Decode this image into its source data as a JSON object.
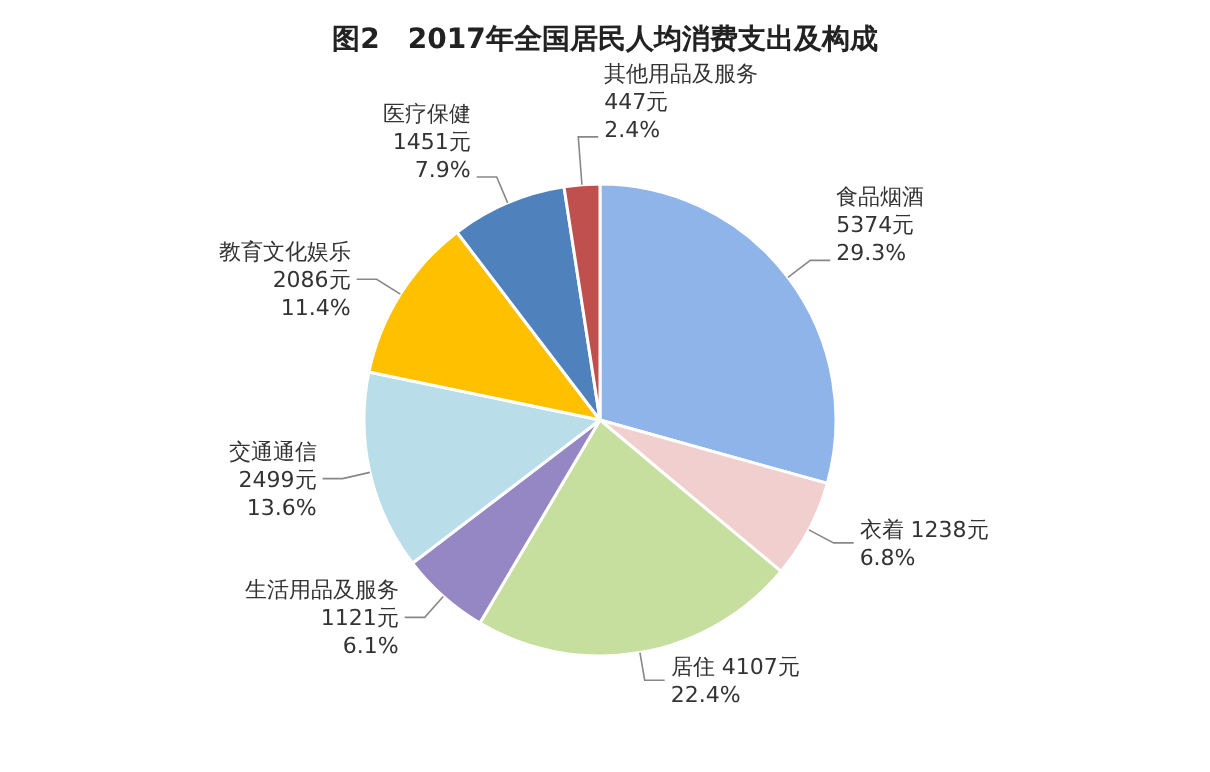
{
  "chart_data": {
    "type": "pie",
    "title": "图2　2017年全国居民人均消费支出及构成",
    "categories": [
      "食品烟酒",
      "衣着",
      "居住",
      "生活用品及服务",
      "交通通信",
      "教育文化娱乐",
      "医疗保健",
      "其他用品及服务"
    ],
    "values": [
      5374,
      1238,
      4107,
      1121,
      2499,
      2086,
      1451,
      447
    ],
    "value_labels": [
      "5374元\n29.3%",
      "1238元\n6.8%",
      "4107元\n22.4%",
      "1121元\n6.1%",
      "2499元\n13.6%",
      "2086元\n11.4%",
      "1451元\n7.9%",
      "447元\n2.4%"
    ],
    "colors": [
      "#8fb4ea",
      "#f2cfcf",
      "#c6df9f",
      "#9487c4",
      "#b9dde9",
      "#ffc000",
      "#4f81bd",
      "#c0504d"
    ]
  }
}
